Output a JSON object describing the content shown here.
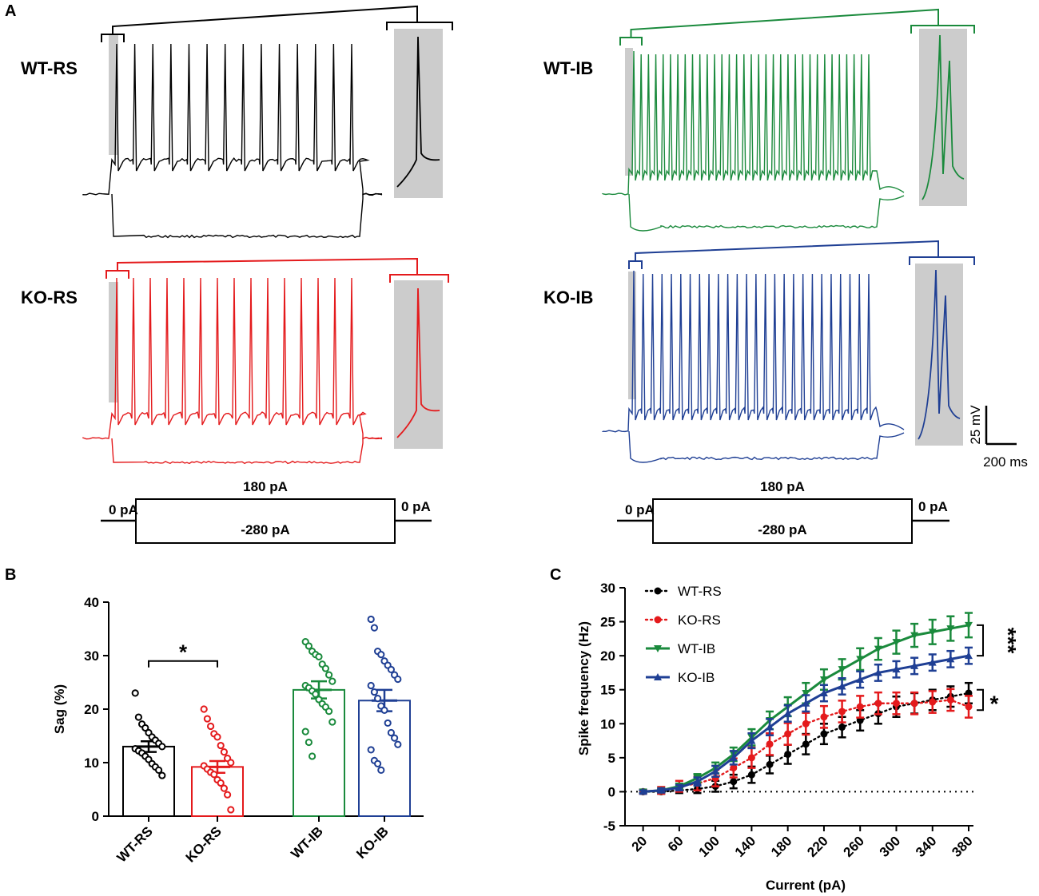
{
  "panel_labels": {
    "a": "A",
    "b": "B",
    "c": "C"
  },
  "colors": {
    "wt_rs": "#000000",
    "ko_rs": "#e41a1c",
    "wt_ib": "#1a8a3c",
    "ko_ib": "#1f3f94",
    "highlight": "#cccccc"
  },
  "panel_a": {
    "traces": [
      {
        "label": "WT-RS",
        "color_key": "wt_rs",
        "spike_count": 14,
        "ib": false
      },
      {
        "label": "KO-RS",
        "color_key": "ko_rs",
        "spike_count": 15,
        "ib": false
      },
      {
        "label": "WT-IB",
        "color_key": "wt_ib",
        "spike_count": 33,
        "ib": true
      },
      {
        "label": "KO-IB",
        "color_key": "ko_ib",
        "spike_count": 26,
        "ib": true
      }
    ],
    "scale_bar": {
      "voltage": "25 mV",
      "time": "200 ms"
    },
    "protocol": {
      "step_up": "180 pA",
      "step_down": "-280 pA",
      "baseline_left": "0 pA",
      "baseline_right": "0 pA"
    }
  },
  "chart_data": [
    {
      "type": "bar",
      "panel": "B",
      "ylabel": "Sag (%)",
      "ylim": [
        0,
        40
      ],
      "yticks": [
        0,
        10,
        20,
        30,
        40
      ],
      "categories": [
        "WT-RS",
        "KO-RS",
        "WT-IB",
        "KO-IB"
      ],
      "values": [
        13.0,
        9.2,
        23.6,
        21.6
      ],
      "sem": [
        1.0,
        1.1,
        1.6,
        2.0
      ],
      "points": [
        [
          23,
          18.5,
          17.2,
          16.5,
          15.6,
          14.8,
          14.2,
          13.6,
          13.0,
          12.6,
          12.2,
          11.8,
          11.2,
          10.6,
          9.8,
          9.2,
          8.6,
          7.6
        ],
        [
          20,
          18.2,
          16.8,
          15.4,
          14.8,
          13.2,
          12.0,
          10.8,
          10.0,
          9.4,
          8.8,
          8.2,
          7.8,
          6.8,
          6.2,
          5.2,
          4.0,
          1.2
        ],
        [
          32.6,
          31.8,
          30.8,
          30.2,
          29.8,
          28.4,
          27.6,
          26.4,
          25.2,
          24.4,
          24.0,
          23.4,
          22.8,
          21.8,
          21.0,
          20.4,
          19.6,
          17.6,
          15.8,
          13.8,
          11.2
        ],
        [
          36.8,
          35.2,
          30.8,
          30.2,
          29.0,
          28.2,
          27.4,
          26.4,
          25.6,
          24.4,
          23.2,
          22.0,
          20.6,
          19.8,
          17.4,
          15.6,
          14.6,
          13.4,
          12.4,
          10.4,
          9.8,
          8.6
        ]
      ],
      "significance": {
        "pair": [
          "WT-RS",
          "KO-RS"
        ],
        "label": "*"
      }
    },
    {
      "type": "line",
      "panel": "C",
      "xlabel": "Current (pA)",
      "ylabel": "Spike frequency (Hz)",
      "xlim": [
        0,
        380
      ],
      "ylim": [
        -5,
        30
      ],
      "xticks": [
        20,
        60,
        100,
        140,
        180,
        220,
        260,
        300,
        340,
        380
      ],
      "yticks": [
        -5,
        0,
        5,
        10,
        15,
        20,
        25,
        30
      ],
      "x": [
        20,
        40,
        60,
        80,
        100,
        120,
        140,
        160,
        180,
        200,
        220,
        240,
        260,
        280,
        300,
        320,
        340,
        360,
        380
      ],
      "series": [
        {
          "name": "WT-RS",
          "color_key": "wt_rs",
          "marker": "circle",
          "line": "dotted",
          "values": [
            0,
            0,
            0.2,
            0.4,
            0.8,
            1.5,
            2.5,
            4,
            5.5,
            7,
            8.5,
            9.5,
            10.5,
            11.5,
            12.5,
            13,
            13.5,
            14,
            14.5
          ],
          "err": [
            0.2,
            0.3,
            0.4,
            0.6,
            0.8,
            1.0,
            1.2,
            1.3,
            1.4,
            1.5,
            1.5,
            1.5,
            1.5,
            1.5,
            1.5,
            1.5,
            1.5,
            1.5,
            1.5
          ]
        },
        {
          "name": "KO-RS",
          "color_key": "ko_rs",
          "marker": "circle",
          "line": "dotted",
          "values": [
            0,
            0.2,
            0.8,
            1.2,
            2.0,
            3.5,
            5.0,
            7.0,
            8.5,
            10.0,
            11.0,
            11.8,
            12.5,
            13.0,
            13.0,
            13.0,
            13.2,
            13.5,
            12.5
          ],
          "err": [
            0.3,
            0.5,
            0.8,
            1.0,
            1.2,
            1.4,
            1.5,
            1.6,
            1.6,
            1.6,
            1.6,
            1.6,
            1.6,
            1.6,
            1.6,
            1.6,
            1.6,
            1.6,
            1.6
          ]
        },
        {
          "name": "WT-IB",
          "color_key": "wt_ib",
          "marker": "triangle-down",
          "line": "solid",
          "values": [
            0,
            0.2,
            0.8,
            2.0,
            3.5,
            5.5,
            8.0,
            10.5,
            12.5,
            14.5,
            16.5,
            18.0,
            19.5,
            21.0,
            22.0,
            23.0,
            23.5,
            24.0,
            24.5
          ],
          "err": [
            0.2,
            0.3,
            0.4,
            0.6,
            0.8,
            1.0,
            1.2,
            1.3,
            1.4,
            1.5,
            1.5,
            1.5,
            1.6,
            1.6,
            1.7,
            1.7,
            1.8,
            1.8,
            1.8
          ]
        },
        {
          "name": "KO-IB",
          "color_key": "ko_ib",
          "marker": "triangle-up",
          "line": "solid",
          "values": [
            0,
            0.2,
            0.6,
            1.5,
            3.0,
            5.0,
            7.5,
            9.5,
            11.5,
            13.0,
            14.5,
            15.5,
            16.5,
            17.5,
            18.0,
            18.5,
            19.0,
            19.5,
            20.0
          ],
          "err": [
            0.2,
            0.3,
            0.4,
            0.6,
            0.8,
            1.0,
            1.1,
            1.2,
            1.2,
            1.2,
            1.2,
            1.2,
            1.2,
            1.2,
            1.2,
            1.2,
            1.2,
            1.2,
            1.2
          ]
        }
      ],
      "significance": [
        {
          "pair": [
            "WT-IB",
            "KO-IB"
          ],
          "label": "***"
        },
        {
          "pair": [
            "WT-RS",
            "KO-RS"
          ],
          "label": "*"
        }
      ]
    }
  ]
}
